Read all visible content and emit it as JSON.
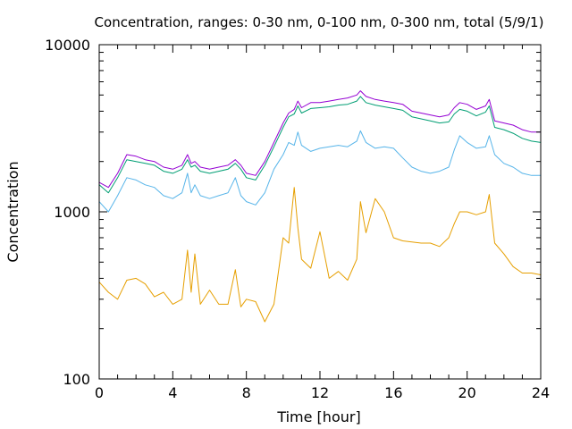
{
  "chart_data": {
    "type": "line",
    "title": "Concentration, ranges: 0-30 nm, 0-100 nm, 0-300 nm, total (5/9/1)",
    "xlabel": "Time [hour]",
    "ylabel": "Concentration",
    "xlim": [
      0,
      24
    ],
    "ylim": [
      100,
      10000
    ],
    "yscale": "log",
    "x_ticks": [
      0,
      4,
      8,
      12,
      16,
      20,
      24
    ],
    "y_ticks": [
      100,
      1000,
      10000
    ],
    "x_tick_labels": [
      "0",
      "4",
      "8",
      "12",
      "16",
      "20",
      "24"
    ],
    "y_tick_labels": [
      "100",
      "1000",
      "10000"
    ],
    "grid": false,
    "legend": "none",
    "x": [
      0,
      0.5,
      1,
      1.5,
      2,
      2.5,
      3,
      3.5,
      4,
      4.5,
      4.8,
      5,
      5.2,
      5.5,
      6,
      6.5,
      7,
      7.4,
      7.7,
      8,
      8.5,
      9,
      9.5,
      10,
      10.3,
      10.6,
      10.8,
      11,
      11.5,
      12,
      12.5,
      13,
      13.5,
      14,
      14.2,
      14.5,
      15,
      15.5,
      16,
      16.5,
      17,
      17.5,
      18,
      18.5,
      19,
      19.3,
      19.6,
      20,
      20.5,
      21,
      21.2,
      21.5,
      22,
      22.5,
      23,
      23.5,
      24
    ],
    "series": [
      {
        "color": "#9400d3",
        "values": [
          1500,
          1400,
          1700,
          2200,
          2150,
          2050,
          2000,
          1850,
          1800,
          1900,
          2200,
          1950,
          2000,
          1850,
          1800,
          1850,
          1900,
          2050,
          1900,
          1700,
          1650,
          2000,
          2600,
          3400,
          3900,
          4100,
          4600,
          4200,
          4500,
          4500,
          4600,
          4700,
          4800,
          5000,
          5300,
          4900,
          4700,
          4600,
          4500,
          4400,
          4000,
          3900,
          3800,
          3700,
          3800,
          4200,
          4500,
          4400,
          4100,
          4300,
          4700,
          3500,
          3400,
          3300,
          3100,
          3000,
          3000
        ]
      },
      {
        "color": "#009e73",
        "values": [
          1450,
          1300,
          1600,
          2050,
          2000,
          1950,
          1900,
          1750,
          1700,
          1800,
          2050,
          1850,
          1900,
          1750,
          1700,
          1750,
          1800,
          1950,
          1800,
          1600,
          1550,
          1900,
          2450,
          3200,
          3700,
          3850,
          4300,
          3900,
          4150,
          4200,
          4250,
          4350,
          4400,
          4600,
          4900,
          4500,
          4350,
          4250,
          4150,
          4050,
          3700,
          3600,
          3500,
          3400,
          3450,
          3850,
          4100,
          4000,
          3750,
          3950,
          4300,
          3200,
          3100,
          2950,
          2750,
          2650,
          2600
        ]
      },
      {
        "color": "#56b4e9",
        "values": [
          1150,
          1000,
          1250,
          1600,
          1550,
          1450,
          1400,
          1250,
          1200,
          1300,
          1700,
          1300,
          1450,
          1250,
          1200,
          1250,
          1300,
          1600,
          1250,
          1150,
          1100,
          1300,
          1800,
          2200,
          2600,
          2500,
          3000,
          2500,
          2300,
          2400,
          2450,
          2500,
          2450,
          2650,
          3050,
          2600,
          2400,
          2450,
          2400,
          2100,
          1850,
          1750,
          1700,
          1750,
          1850,
          2350,
          2850,
          2600,
          2400,
          2450,
          2850,
          2200,
          1950,
          1850,
          1700,
          1650,
          1650
        ]
      },
      {
        "color": "#e69f00",
        "values": [
          380,
          330,
          300,
          390,
          400,
          370,
          310,
          330,
          280,
          300,
          590,
          330,
          560,
          280,
          340,
          280,
          280,
          450,
          270,
          300,
          290,
          220,
          280,
          700,
          650,
          1400,
          800,
          520,
          460,
          760,
          400,
          440,
          390,
          520,
          1150,
          750,
          1200,
          1000,
          700,
          670,
          660,
          650,
          650,
          620,
          700,
          850,
          1000,
          1000,
          960,
          1000,
          1270,
          650,
          560,
          470,
          430,
          430,
          420
        ]
      }
    ]
  }
}
